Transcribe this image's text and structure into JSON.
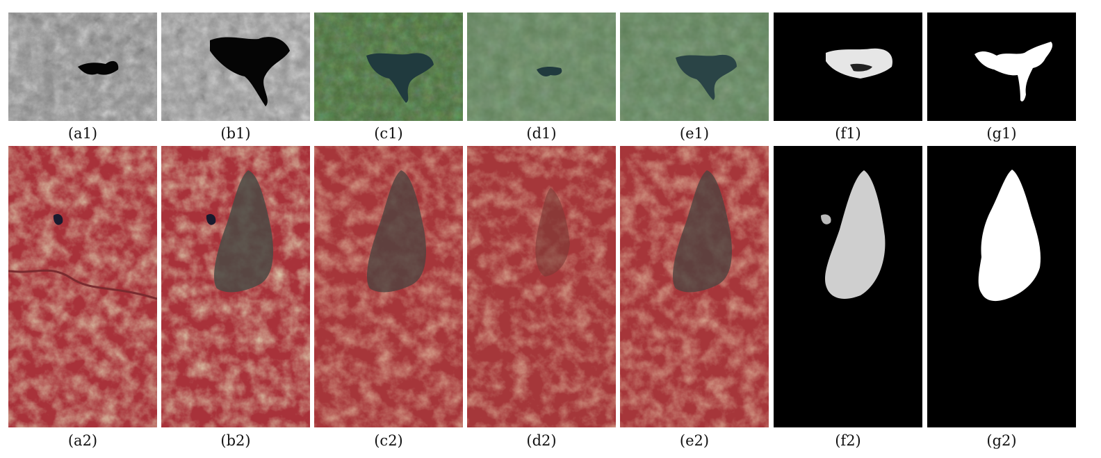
{
  "captions_row1": [
    "(a1)",
    "(b1)",
    "(c1)",
    "(d1)",
    "(e1)",
    "(f1)",
    "(g1)"
  ],
  "captions_row2": [
    "(a2)",
    "(b2)",
    "(c2)",
    "(d2)",
    "(e2)",
    "(f2)",
    "(g2)"
  ],
  "colors": {
    "background": "#ffffff",
    "caption_text": "#111111",
    "gray_land": "#8a8a8a",
    "gray_water": "#050505",
    "rgb_land": "#4a6b3c",
    "rgb_land_hazy": "#60805a",
    "rgb_water": "#203a3e",
    "false_color_land": "#a8323a",
    "false_color_tan": "#b08a60",
    "false_color_dark": "#4a4a44",
    "mask_background": "#000000",
    "mask_foreground": "#ffffff"
  }
}
